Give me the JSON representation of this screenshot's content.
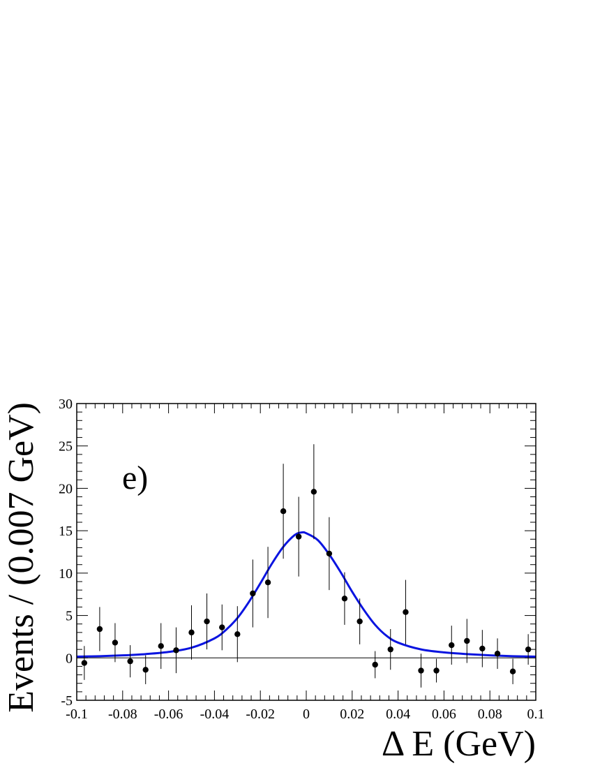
{
  "chart_data": {
    "type": "scatter",
    "panel_label": "e)",
    "xlabel": "Δ E (GeV)",
    "ylabel": "Events / (0.007 GeV)",
    "xlim": [
      -0.1,
      0.1
    ],
    "ylim": [
      -5,
      30
    ],
    "x_ticks": [
      -0.1,
      -0.08,
      -0.06,
      -0.04,
      -0.02,
      0,
      0.02,
      0.04,
      0.06,
      0.08,
      0.1
    ],
    "x_tick_labels": [
      "-0.1",
      "-0.08",
      "-0.06",
      "-0.04",
      "-0.02",
      "0",
      "0.02",
      "0.04",
      "0.06",
      "0.08",
      "0.1"
    ],
    "y_ticks": [
      -5,
      0,
      5,
      10,
      15,
      20,
      25,
      30
    ],
    "y_tick_labels": [
      "-5",
      "0",
      "5",
      "10",
      "15",
      "20",
      "25",
      "30"
    ],
    "legend": "none",
    "grid": false,
    "colors": {
      "fit_curve": "#0a14e0",
      "points": "#000000",
      "axes": "#000000"
    },
    "series": [
      {
        "kind": "data_points_with_error_bars",
        "x": [
          -0.0967,
          -0.09,
          -0.0833,
          -0.0767,
          -0.07,
          -0.0633,
          -0.0567,
          -0.05,
          -0.0433,
          -0.0367,
          -0.03,
          -0.0233,
          -0.0167,
          -0.01,
          -0.0033,
          0.0033,
          0.01,
          0.0167,
          0.0233,
          0.03,
          0.0367,
          0.0433,
          0.05,
          0.0567,
          0.0633,
          0.07,
          0.0767,
          0.0833,
          0.09,
          0.0967
        ],
        "y": [
          -0.6,
          3.4,
          1.8,
          -0.4,
          -1.4,
          1.4,
          0.9,
          3.0,
          4.3,
          3.6,
          2.8,
          7.6,
          8.9,
          17.3,
          14.3,
          19.6,
          12.3,
          7.0,
          4.3,
          -0.8,
          1.0,
          5.4,
          -1.5,
          -1.5,
          1.5,
          2.0,
          1.1,
          0.5,
          -1.6,
          1.0
        ],
        "y_err": [
          2.0,
          2.6,
          2.3,
          1.9,
          1.7,
          2.7,
          2.7,
          3.2,
          3.3,
          2.7,
          3.3,
          4.0,
          4.2,
          5.6,
          4.7,
          5.6,
          4.3,
          3.1,
          2.7,
          1.6,
          2.4,
          3.8,
          2.0,
          1.4,
          2.3,
          2.6,
          2.2,
          1.8,
          1.5,
          1.8
        ]
      },
      {
        "kind": "fit_curve",
        "model": "gaussian_core_plus_lorentzian_tails",
        "x": [
          -0.1,
          -0.09,
          -0.08,
          -0.07,
          -0.06,
          -0.05,
          -0.04,
          -0.035,
          -0.03,
          -0.025,
          -0.02,
          -0.015,
          -0.01,
          -0.005,
          -0.002,
          0,
          0.005,
          0.01,
          0.015,
          0.02,
          0.025,
          0.03,
          0.035,
          0.04,
          0.05,
          0.06,
          0.07,
          0.08,
          0.09,
          0.1
        ],
        "y": [
          0.15,
          0.2,
          0.3,
          0.45,
          0.7,
          1.2,
          2.3,
          3.3,
          4.7,
          6.6,
          8.8,
          11.1,
          13.1,
          14.5,
          14.8,
          14.7,
          13.9,
          12.2,
          10.1,
          7.8,
          5.7,
          3.9,
          2.6,
          1.8,
          1.0,
          0.65,
          0.45,
          0.3,
          0.2,
          0.15
        ]
      }
    ]
  }
}
